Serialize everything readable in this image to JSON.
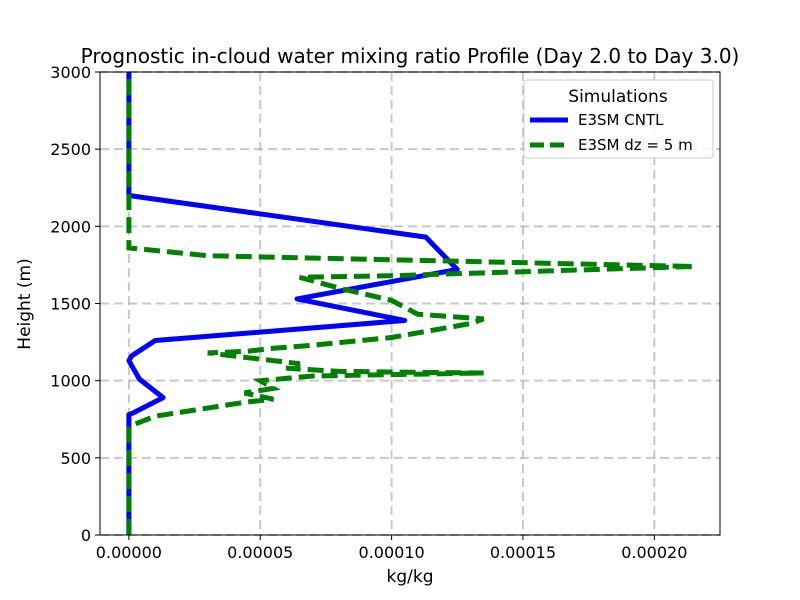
{
  "chart_data": {
    "type": "line",
    "title": "Prognostic in-cloud water mixing ratio Profile (Day 2.0 to Day 3.0)",
    "xlabel": "kg/kg",
    "ylabel": "Height (m)",
    "xlim": [
      -1.1e-05,
      0.000225
    ],
    "ylim": [
      0,
      3000
    ],
    "xticks": [
      0,
      5e-05,
      0.0001,
      0.00015,
      0.0002
    ],
    "xtick_labels": [
      "0.00000",
      "0.00005",
      "0.00010",
      "0.00015",
      "0.00020"
    ],
    "yticks": [
      0,
      500,
      1000,
      1500,
      2000,
      2500,
      3000
    ],
    "ytick_labels": [
      "0",
      "500",
      "1000",
      "1500",
      "2000",
      "2500",
      "3000"
    ],
    "grid": true,
    "legend": {
      "title": "Simulations",
      "position": "top-right"
    },
    "series": [
      {
        "name": "E3SM CNTL",
        "color": "#0000ff",
        "style": "solid",
        "points": [
          [
            0,
            0
          ],
          [
            0,
            780
          ],
          [
            1.5e-06,
            790
          ],
          [
            1.3e-05,
            890
          ],
          [
            4e-06,
            1010
          ],
          [
            0,
            1130
          ],
          [
            1e-06,
            1160
          ],
          [
            1e-05,
            1260
          ],
          [
            0.000105,
            1390
          ],
          [
            6.4e-05,
            1530
          ],
          [
            0.000125,
            1720
          ],
          [
            0.000113,
            1930
          ],
          [
            0,
            2200
          ],
          [
            0,
            3000
          ]
        ]
      },
      {
        "name": "E3SM dz = 5 m",
        "color": "#008000",
        "style": "dashed",
        "points": [
          [
            0,
            0
          ],
          [
            0,
            690
          ],
          [
            1e-06,
            710
          ],
          [
            1e-05,
            770
          ],
          [
            4.4e-05,
            860
          ],
          [
            5.5e-05,
            880
          ],
          [
            4.4e-05,
            920
          ],
          [
            5.5e-05,
            950
          ],
          [
            5e-05,
            1000
          ],
          [
            7e-05,
            1030
          ],
          [
            0.000135,
            1050
          ],
          [
            8e-05,
            1060
          ],
          [
            6e-05,
            1080
          ],
          [
            6.5e-05,
            1110
          ],
          [
            5e-05,
            1140
          ],
          [
            3e-05,
            1180
          ],
          [
            4.5e-05,
            1190
          ],
          [
            5.5e-05,
            1210
          ],
          [
            7e-05,
            1230
          ],
          [
            0.0001,
            1280
          ],
          [
            0.00013,
            1370
          ],
          [
            0.000135,
            1400
          ],
          [
            0.00011,
            1430
          ],
          [
            0.0001,
            1520
          ],
          [
            8e-05,
            1600
          ],
          [
            6.5e-05,
            1670
          ],
          [
            0.0001,
            1680
          ],
          [
            0.000215,
            1740
          ],
          [
            3e-05,
            1810
          ],
          [
            0,
            1860
          ],
          [
            0,
            1900
          ],
          [
            0,
            2200
          ],
          [
            0,
            2500
          ],
          [
            0,
            3000
          ]
        ]
      }
    ]
  }
}
